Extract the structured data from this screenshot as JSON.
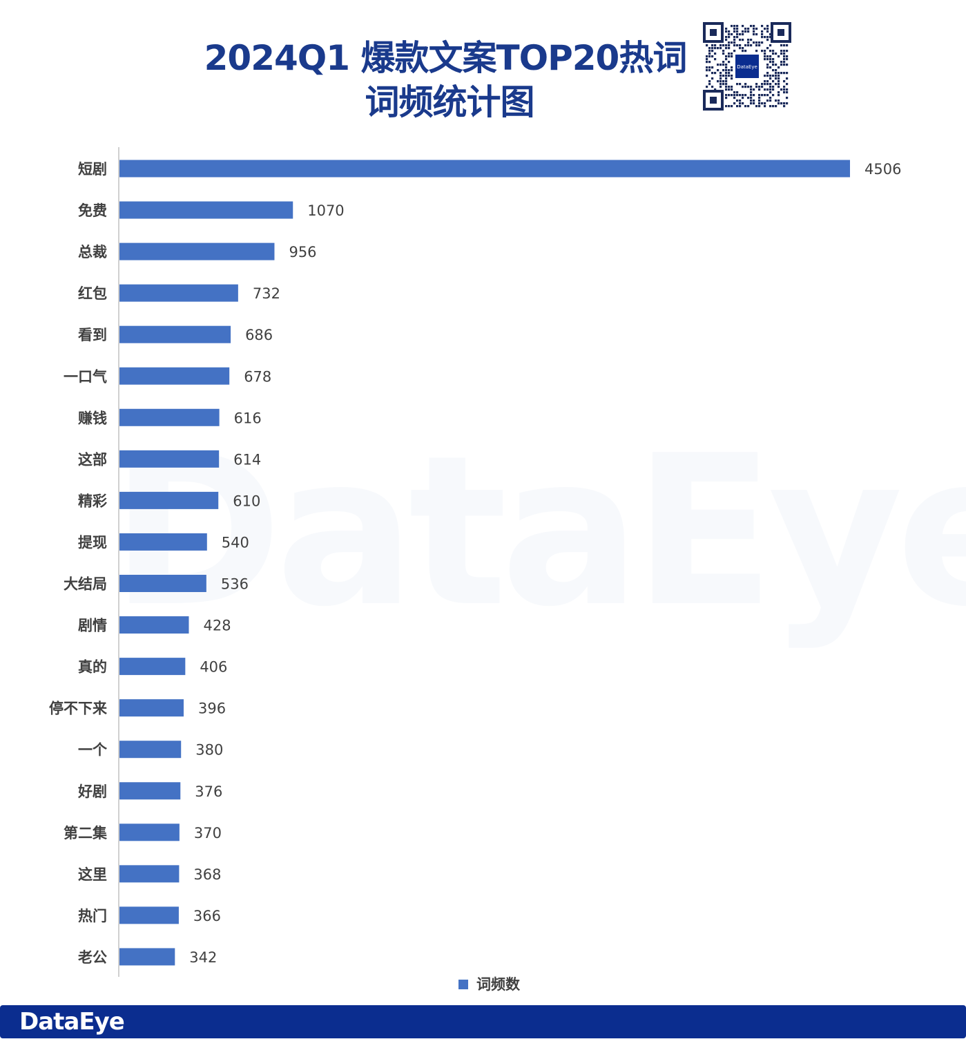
{
  "title_line1": "2024Q1  爆款文案TOP20热词",
  "title_line2": "词频统计图",
  "qr_center_text": "DataEye",
  "watermark_text": "DataEye",
  "footer_logo": "DataEye",
  "colors": {
    "bar": "#4472c4",
    "title": "#1a3a8c",
    "footer": "#0b2d8f",
    "label": "#404040"
  },
  "chart_data": {
    "type": "bar",
    "orientation": "horizontal",
    "categories": [
      "短剧",
      "免费",
      "总裁",
      "红包",
      "看到",
      "一口气",
      "赚钱",
      "这部",
      "精彩",
      "提现",
      "大结局",
      "剧情",
      "真的",
      "停不下来",
      "一个",
      "好剧",
      "第二集",
      "这里",
      "热门",
      "老公"
    ],
    "series": [
      {
        "name": "词频数",
        "values": [
          4506,
          1070,
          956,
          732,
          686,
          678,
          616,
          614,
          610,
          540,
          536,
          428,
          406,
          396,
          380,
          376,
          370,
          368,
          366,
          342
        ]
      }
    ],
    "xlim": [
      0,
      4506
    ],
    "grid": false,
    "legend": "bottom",
    "data_labels": true
  }
}
